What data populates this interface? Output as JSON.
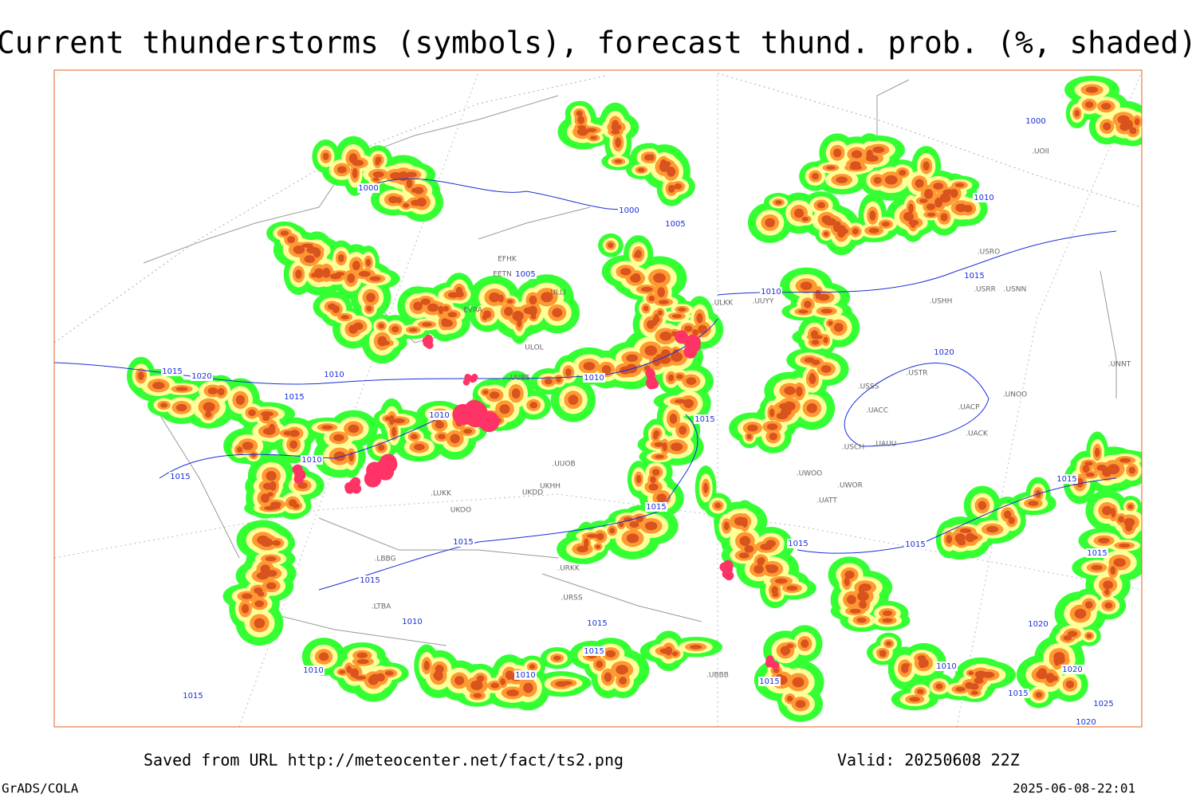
{
  "header": {
    "title": "Current thunderstorms (symbols), forecast thund. prob. (%, shaded)"
  },
  "footer": {
    "source": "Saved from URL http://meteocenter.net/fact/ts2.png",
    "valid": "Valid: 20250608 22Z",
    "credit": "GrADS/COLA",
    "timestamp": "2025-06-08-22:01"
  },
  "map": {
    "isobar_labels": [
      "1000",
      "1000",
      "1005",
      "1005",
      "1010",
      "1010",
      "1010",
      "1010",
      "1010",
      "1015",
      "1020",
      "1015",
      "1015",
      "1015",
      "1015",
      "1015",
      "1015",
      "1015",
      "1015",
      "1015",
      "1015",
      "1020",
      "1010",
      "1015",
      "1000",
      "1010",
      "1015",
      "1015",
      "1010",
      "1010",
      "1015",
      "1015",
      "1010",
      "1020",
      "1020",
      "1015",
      "1025",
      "1020"
    ],
    "station_labels": [
      ".UOII",
      ".USRO",
      "EFHK",
      "EETN",
      "ULLI",
      ".ULKK",
      ".UUYY",
      ".USHH",
      ".USRR",
      ".USNN",
      "EVRA",
      "ULOL",
      ".UUBS",
      ".UUOB",
      ".LUKK",
      "UKDD",
      "UKHH",
      "UKOO",
      ".URKK",
      ".USSS",
      ".USTR",
      ".UNOO",
      ".UACP",
      ".UACC",
      ".UACK",
      ".UAUU",
      ".USCH",
      ".UWOO",
      ".UWOR",
      ".UATT",
      ".UNNT",
      ".LBBG",
      ".LTBA",
      ".URSS",
      ".UBBB"
    ]
  }
}
